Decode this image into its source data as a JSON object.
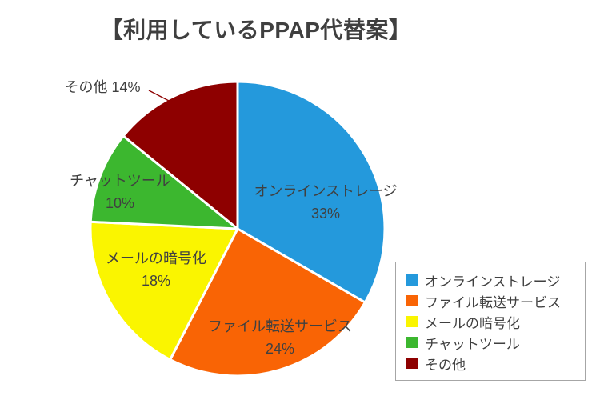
{
  "chart_data": {
    "type": "pie",
    "title": "【利用しているPPAP代替案】",
    "value_suffix": "%",
    "direction": "clockwise",
    "start_angle_deg": 0,
    "legend_position": "right",
    "label_color": "#404040",
    "legend_border_color": "#a6a6a6",
    "slice_border_color": "#ffffff",
    "slices": [
      {
        "label": "オンラインストレージ",
        "value": 33,
        "color": "#2499dc"
      },
      {
        "label": "ファイル転送サービス",
        "value": 24,
        "color": "#f96405"
      },
      {
        "label": "メールの暗号化",
        "value": 18,
        "color": "#faf500"
      },
      {
        "label": "チャットツール",
        "value": 10,
        "color": "#3cb72f"
      },
      {
        "label": "その他",
        "value": 14,
        "color": "#8e0000"
      }
    ]
  }
}
